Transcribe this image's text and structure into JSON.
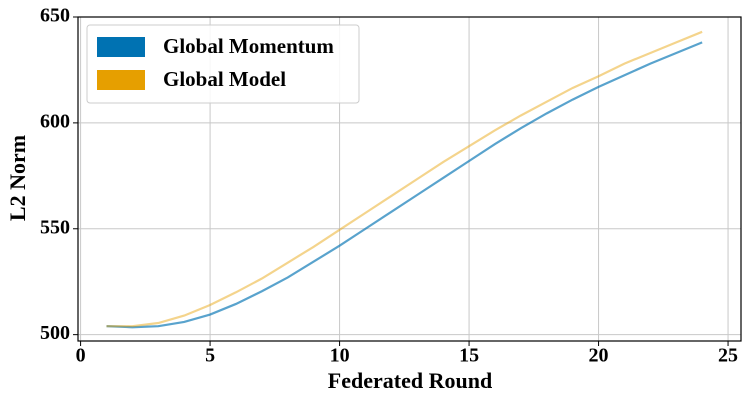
{
  "chart_data": {
    "type": "line",
    "x_label": "Federated Round",
    "y_label": "L2 Norm",
    "x": [
      1,
      2,
      3,
      4,
      5,
      6,
      7,
      8,
      9,
      10,
      11,
      12,
      13,
      14,
      15,
      16,
      17,
      18,
      19,
      20,
      21,
      22,
      23,
      24
    ],
    "series": [
      {
        "name": "Global Momentum",
        "color": "#0072b2",
        "values": [
          504,
          503.5,
          504,
          506,
          509.5,
          514.5,
          520.5,
          527,
          534.5,
          542,
          550,
          558,
          566,
          574,
          582,
          590,
          597.5,
          604.5,
          611,
          617,
          622.5,
          628,
          633,
          638
        ]
      },
      {
        "name": "Global Model",
        "color": "#e69f00",
        "values": [
          504,
          504,
          505.5,
          509,
          514,
          520,
          526.5,
          534,
          541.5,
          549.5,
          557.5,
          565.5,
          573.5,
          581.5,
          589,
          596.5,
          603.5,
          610,
          616.5,
          622,
          628,
          633,
          638,
          643
        ]
      }
    ],
    "xlim": [
      -0.1,
      25.5
    ],
    "xticks": [
      0,
      5,
      10,
      15,
      20,
      25
    ],
    "ylim": [
      497,
      650
    ],
    "yticks": [
      500,
      550,
      600,
      650
    ],
    "grid": true,
    "legend": "upper-left"
  }
}
